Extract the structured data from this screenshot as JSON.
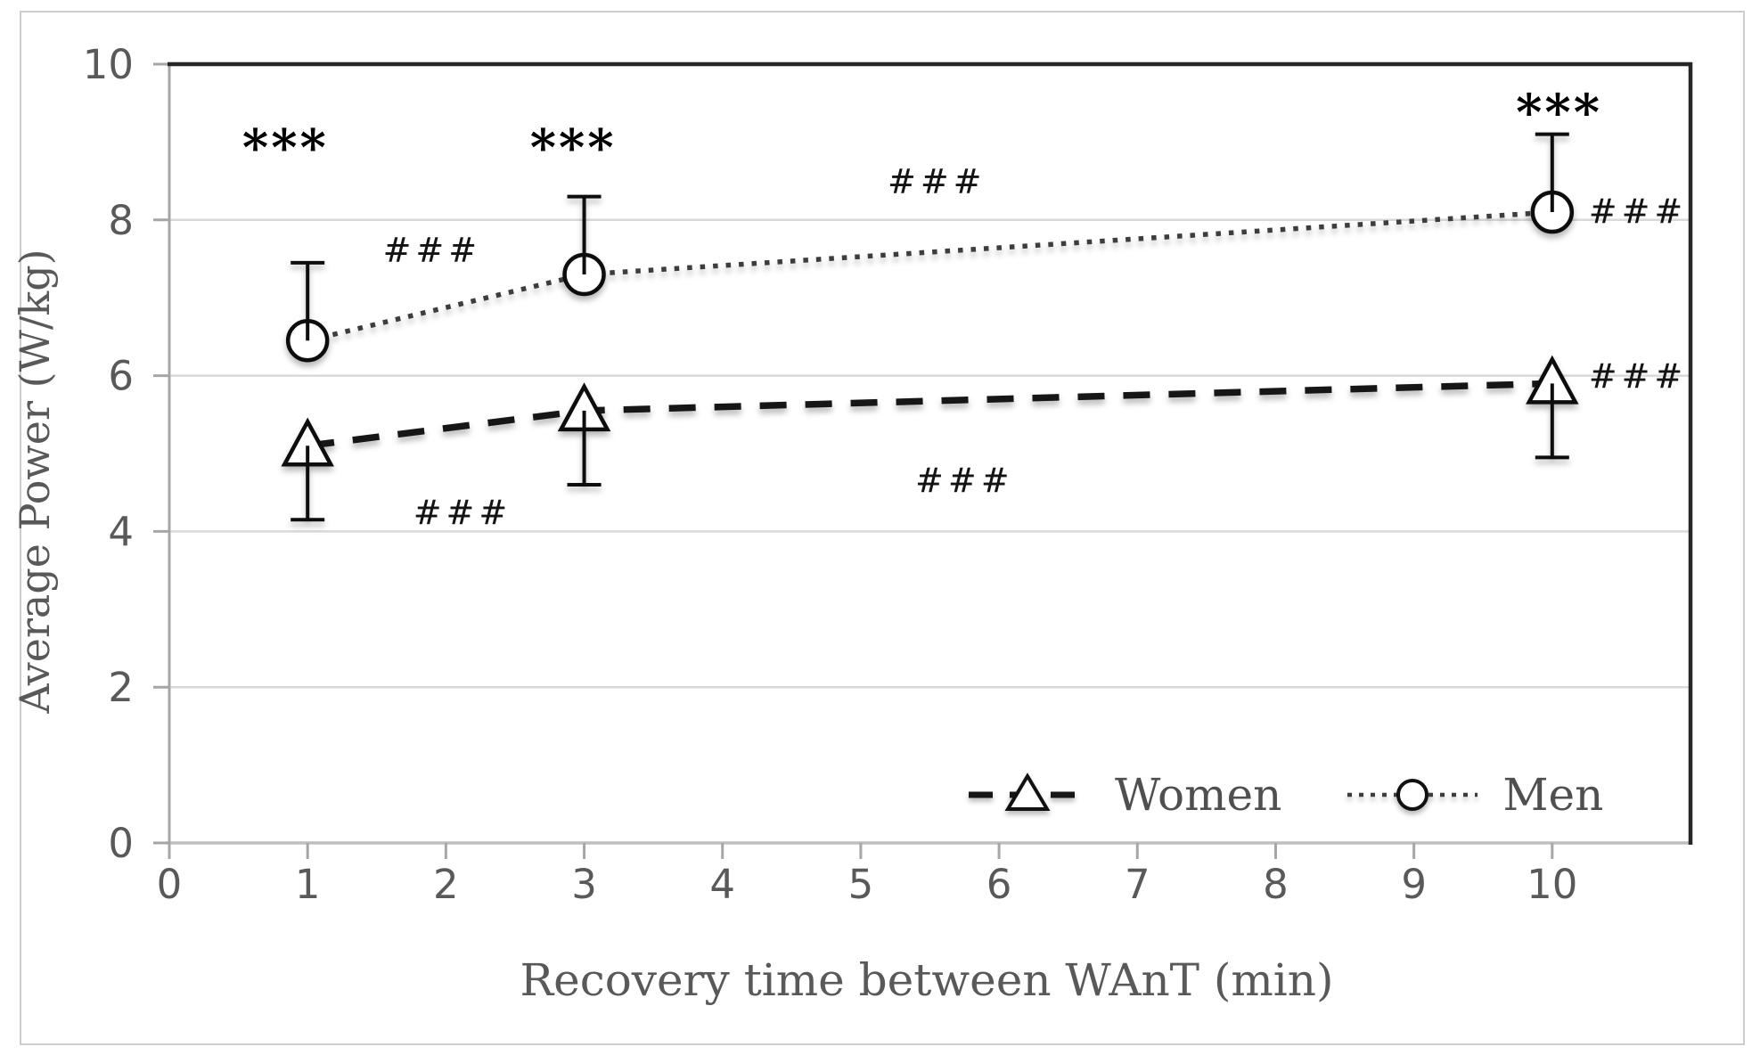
{
  "chart_data": {
    "type": "line",
    "title": "",
    "xlabel": "Recovery time between WAnT (min)",
    "ylabel": "Average Power (W/kg)",
    "xlim": [
      0,
      11
    ],
    "ylim": [
      0,
      10
    ],
    "x_ticks": [
      0,
      1,
      2,
      3,
      4,
      5,
      6,
      7,
      8,
      9,
      10
    ],
    "y_ticks": [
      0,
      2,
      4,
      6,
      8,
      10
    ],
    "grid": "horizontal",
    "legend_position": "bottom-right-inside",
    "x": [
      1,
      3,
      10
    ],
    "series": [
      {
        "name": "Women",
        "marker": "triangle",
        "line_style": "dashed",
        "values": [
          5.1,
          5.55,
          5.9
        ],
        "error_up": [
          0,
          0,
          0
        ],
        "error_down": [
          0.95,
          0.95,
          0.95
        ]
      },
      {
        "name": "Men",
        "marker": "circle",
        "line_style": "dotted",
        "values": [
          6.45,
          7.3,
          8.1
        ],
        "error_up": [
          1.0,
          1.0,
          1.0
        ],
        "error_down": [
          0,
          0,
          0
        ]
      }
    ],
    "annotations": [
      {
        "text": "***",
        "x": 0.84,
        "y": 9.05,
        "style": "stars"
      },
      {
        "text": "***",
        "x": 2.92,
        "y": 9.05,
        "style": "stars"
      },
      {
        "text": "***",
        "x": 10.05,
        "y": 9.5,
        "style": "stars"
      },
      {
        "text": "###",
        "x": 1.9,
        "y": 7.62,
        "style": "hash"
      },
      {
        "text": "###",
        "x": 5.55,
        "y": 8.5,
        "style": "hash"
      },
      {
        "text": "###",
        "x": 10.62,
        "y": 8.12,
        "style": "hash"
      },
      {
        "text": "###",
        "x": 10.62,
        "y": 6.0,
        "style": "hash"
      },
      {
        "text": "###",
        "x": 2.12,
        "y": 4.25,
        "style": "hash"
      },
      {
        "text": "###",
        "x": 5.75,
        "y": 4.66,
        "style": "hash"
      }
    ]
  },
  "legend": {
    "items": [
      {
        "label": "Women"
      },
      {
        "label": "Men"
      }
    ]
  },
  "colors": {
    "women_line": "#161616",
    "men_line": "#3d3d3d",
    "marker_stroke": "#111111",
    "marker_fill": "#ffffff",
    "error_bar": "#111111",
    "gridline": "#d9d9d9",
    "axis_line": "#a6a6a6",
    "zero_line": "#bfbfbf",
    "plot_border": "#262626",
    "tick_text": "#595959",
    "annotation_text": "#141414"
  }
}
